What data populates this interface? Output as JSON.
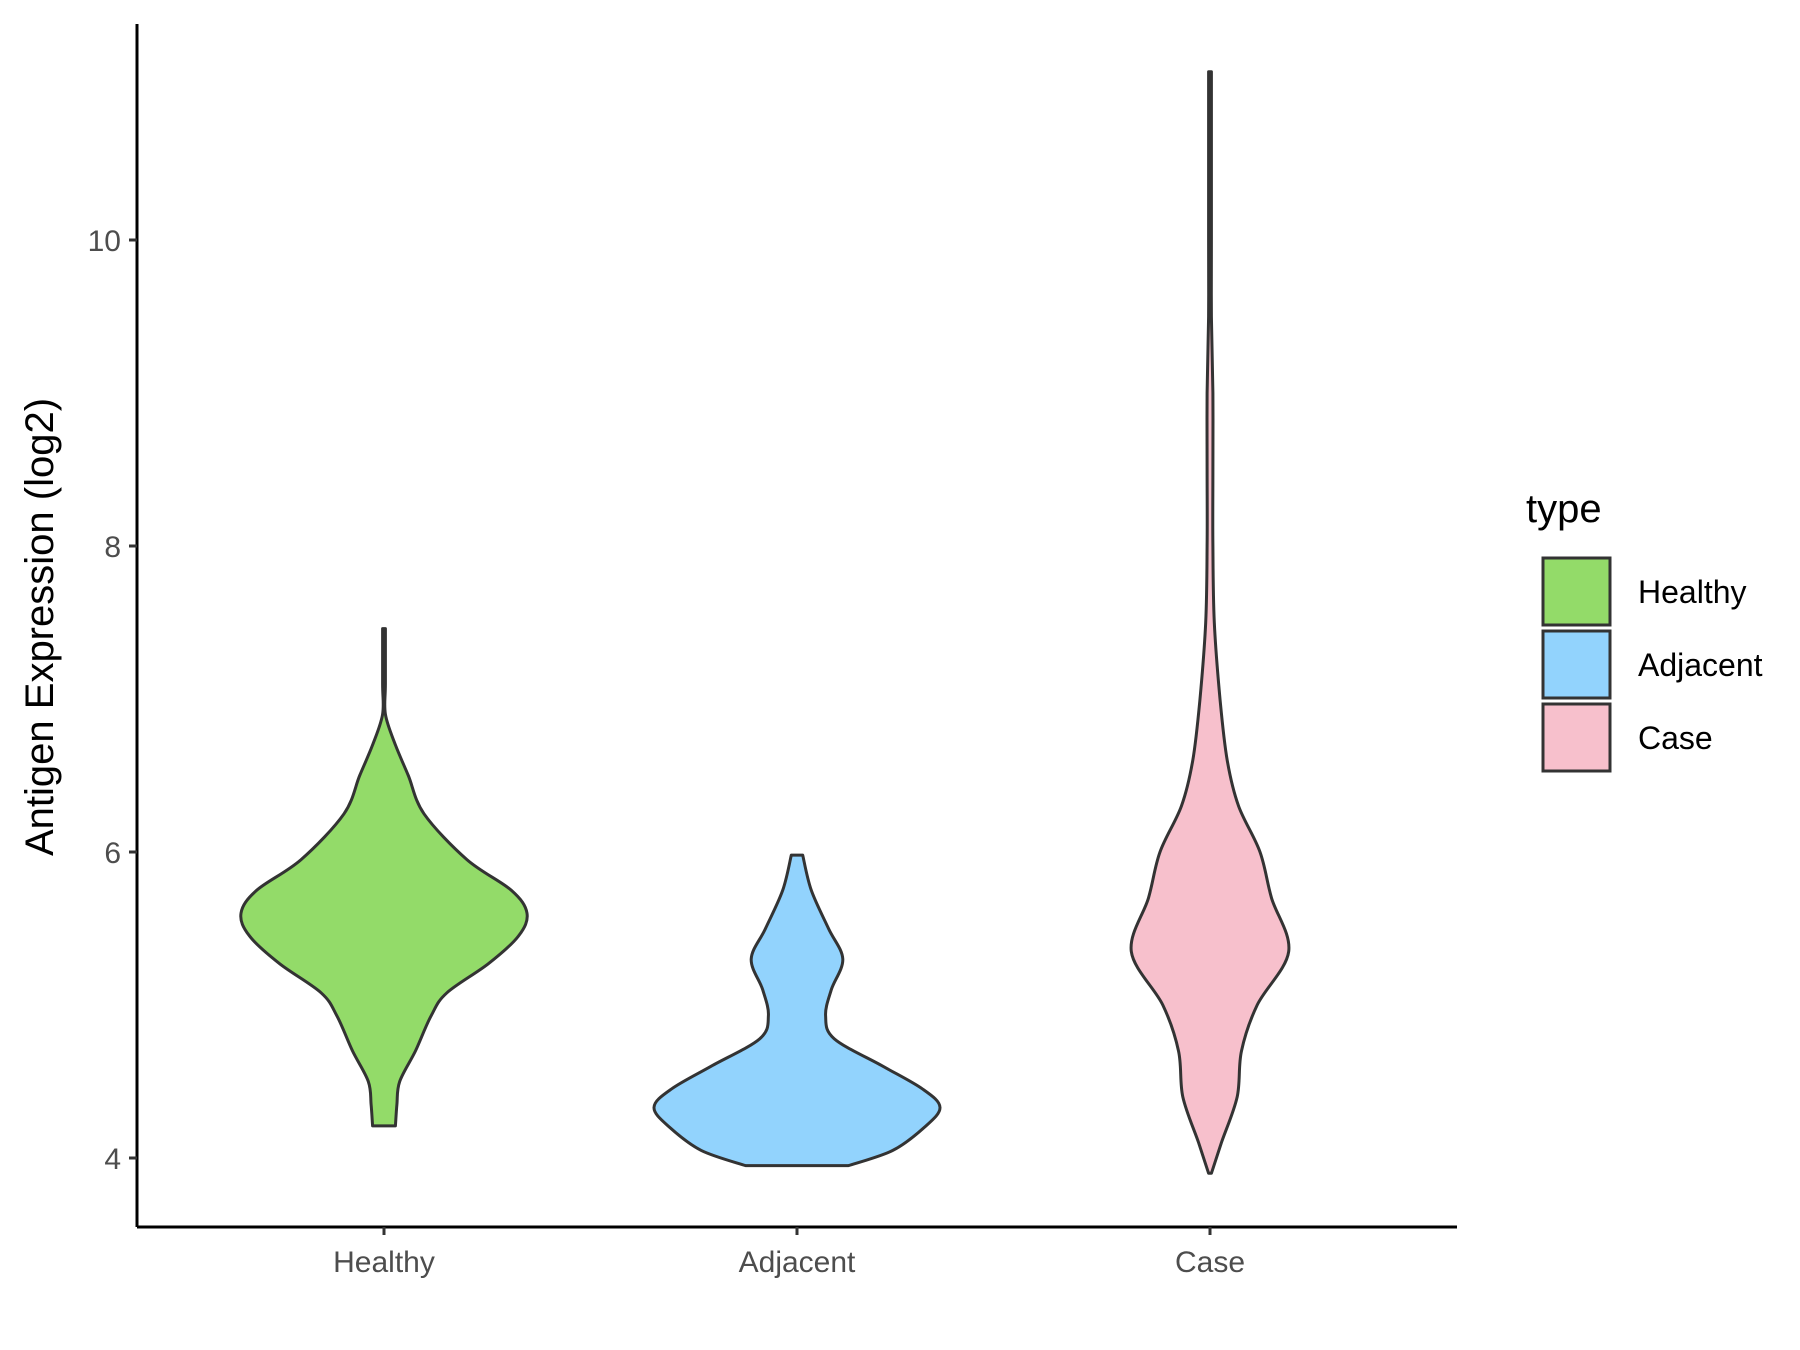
{
  "chart_data": {
    "type": "violin",
    "ylabel": "Antigen Expression (log2)",
    "xlabel": "",
    "categories": [
      "Healthy",
      "Adjacent",
      "Case"
    ],
    "y_ticks": [
      "4",
      "6",
      "8",
      "10"
    ],
    "ylim": [
      3.55,
      11.5
    ],
    "grid": false,
    "legend": {
      "title": "type",
      "position": "right",
      "entries": [
        {
          "label": "Healthy",
          "color": "#93db69"
        },
        {
          "label": "Adjacent",
          "color": "#92d3fd"
        },
        {
          "label": "Case",
          "color": "#f7c0cc"
        }
      ]
    },
    "series": [
      {
        "category": "Healthy",
        "color": "#93db69",
        "min": 4.21,
        "max": 7.46,
        "profile": [
          [
            4.21,
            0.08
          ],
          [
            4.35,
            0.09
          ],
          [
            4.5,
            0.11
          ],
          [
            4.7,
            0.22
          ],
          [
            4.93,
            0.33
          ],
          [
            5.08,
            0.44
          ],
          [
            5.27,
            0.73
          ],
          [
            5.45,
            0.94
          ],
          [
            5.6,
            1.0
          ],
          [
            5.75,
            0.89
          ],
          [
            5.95,
            0.58
          ],
          [
            6.25,
            0.28
          ],
          [
            6.5,
            0.17
          ],
          [
            6.7,
            0.08
          ],
          [
            6.9,
            0.01
          ],
          [
            7.1,
            0.01
          ],
          [
            7.46,
            0.01
          ]
        ]
      },
      {
        "category": "Adjacent",
        "color": "#92d3fd",
        "min": 3.95,
        "max": 5.98,
        "profile": [
          [
            3.95,
            0.36
          ],
          [
            4.05,
            0.67
          ],
          [
            4.2,
            0.89
          ],
          [
            4.33,
            1.0
          ],
          [
            4.45,
            0.88
          ],
          [
            4.6,
            0.6
          ],
          [
            4.78,
            0.26
          ],
          [
            4.93,
            0.2
          ],
          [
            5.1,
            0.24
          ],
          [
            5.3,
            0.32
          ],
          [
            5.5,
            0.22
          ],
          [
            5.75,
            0.1
          ],
          [
            5.98,
            0.04
          ]
        ]
      },
      {
        "category": "Case",
        "color": "#f7c0cc",
        "min": 3.9,
        "max": 11.1,
        "profile": [
          [
            3.9,
            0.01
          ],
          [
            4.1,
            0.08
          ],
          [
            4.4,
            0.19
          ],
          [
            4.7,
            0.22
          ],
          [
            5.0,
            0.33
          ],
          [
            5.35,
            0.55
          ],
          [
            5.7,
            0.43
          ],
          [
            6.0,
            0.35
          ],
          [
            6.3,
            0.2
          ],
          [
            6.6,
            0.12
          ],
          [
            7.0,
            0.07
          ],
          [
            7.5,
            0.03
          ],
          [
            8.0,
            0.02
          ],
          [
            8.5,
            0.02
          ],
          [
            9.0,
            0.02
          ],
          [
            9.5,
            0.01
          ],
          [
            10.0,
            0.01
          ],
          [
            11.1,
            0.01
          ]
        ]
      }
    ]
  }
}
